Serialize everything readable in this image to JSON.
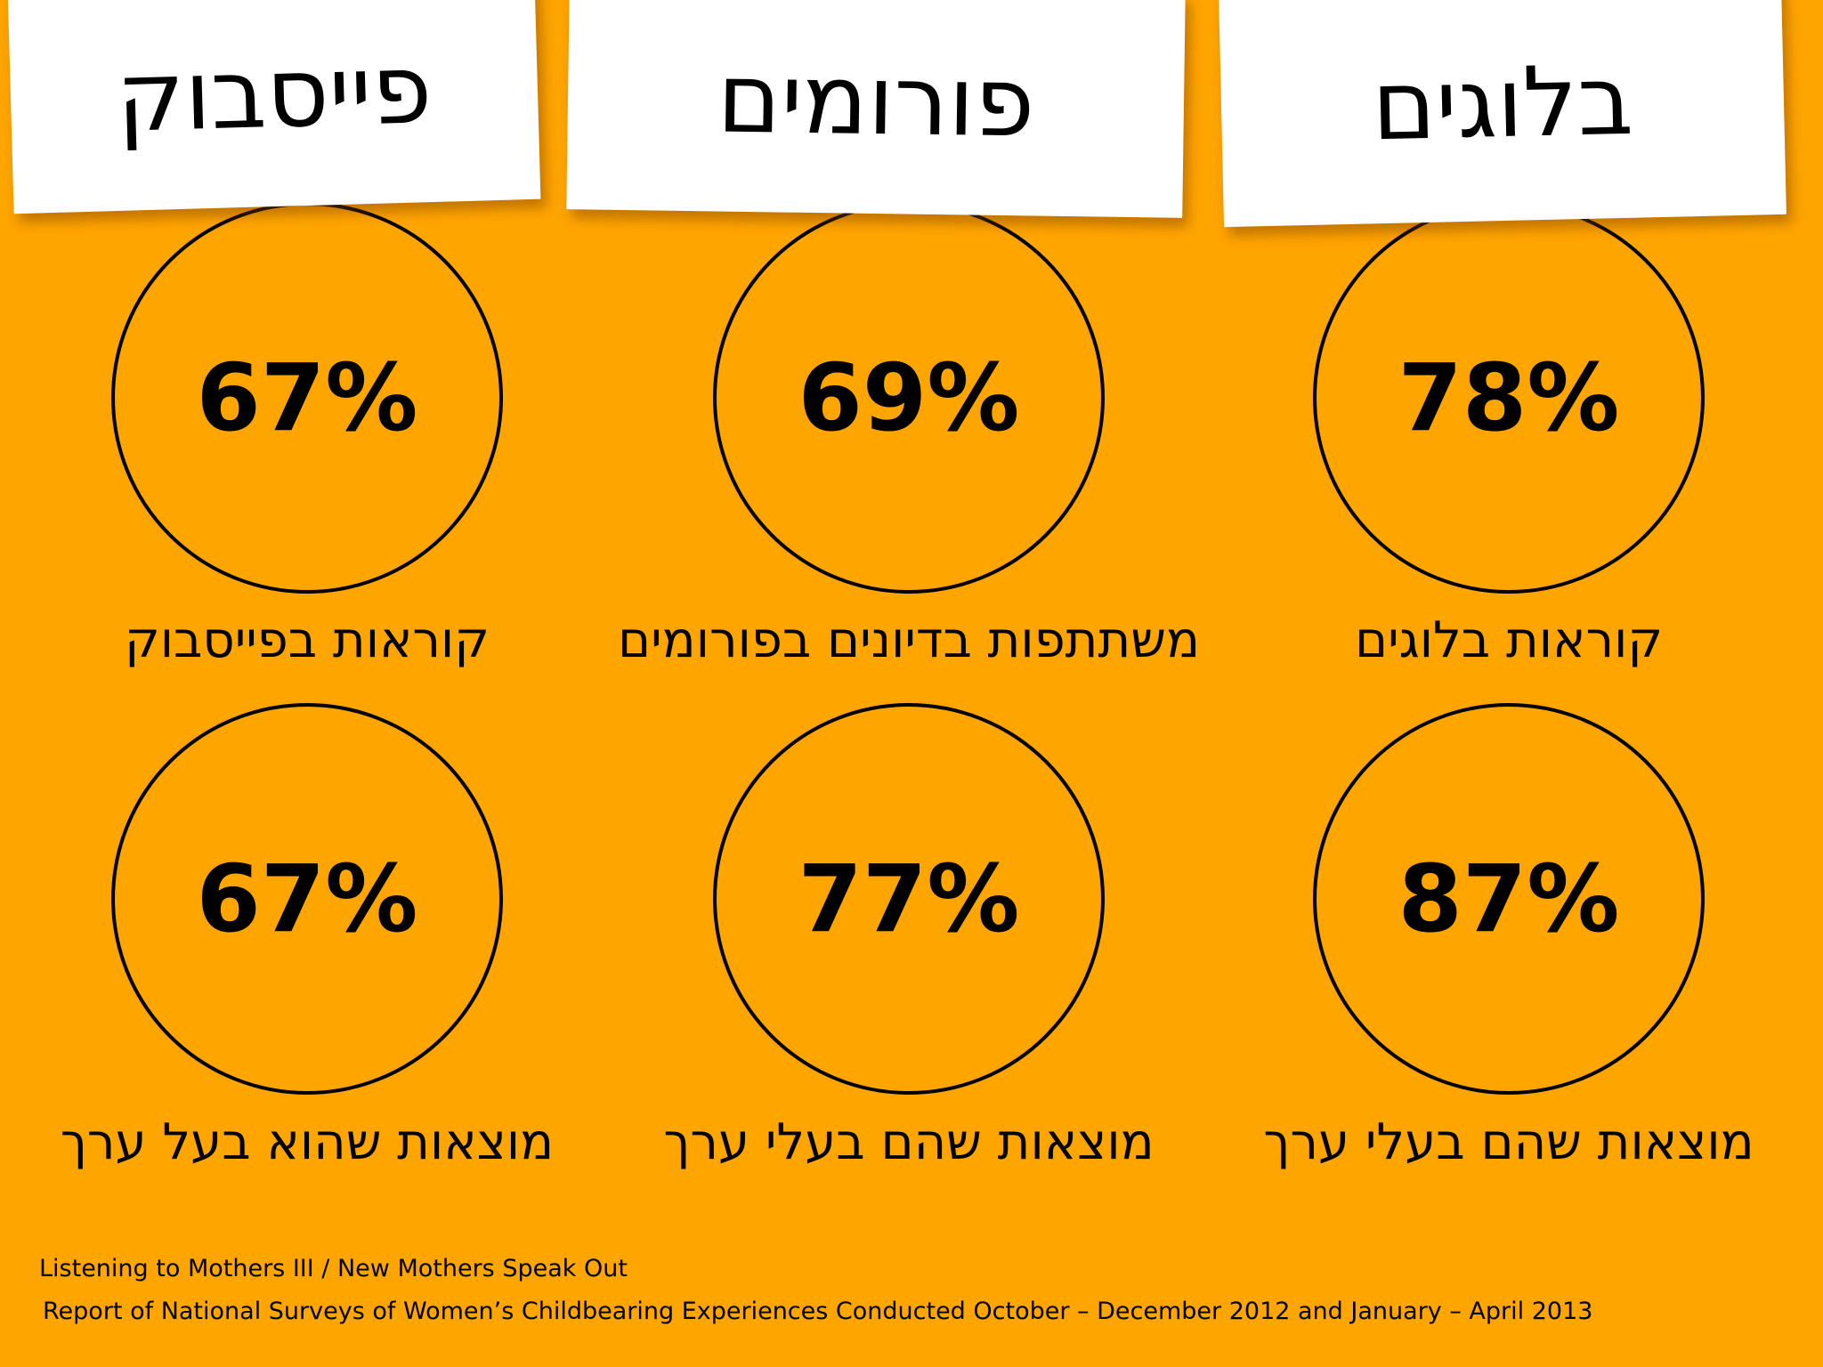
{
  "columns": [
    {
      "title": "פייסבוק",
      "stats": [
        {
          "value": "67%",
          "caption": "קוראות בפייסבוק"
        },
        {
          "value": "67%",
          "caption": "מוצאות שהוא בעל ערך"
        }
      ]
    },
    {
      "title": "פורומים",
      "stats": [
        {
          "value": "69%",
          "caption": "משתתפות בדיונים בפורומים"
        },
        {
          "value": "77%",
          "caption": "מוצאות שהם בעלי ערך"
        }
      ]
    },
    {
      "title": "בלוגים",
      "stats": [
        {
          "value": "78%",
          "caption": "קוראות בלוגים"
        },
        {
          "value": "87%",
          "caption": "מוצאות שהם בעלי ערך"
        }
      ]
    }
  ],
  "source": {
    "line1": "Listening to Mothers III / New Mothers Speak Out",
    "line2": "Report of National Surveys of Women’s Childbearing Experiences Conducted October – December 2012 and January – April 2013"
  }
}
